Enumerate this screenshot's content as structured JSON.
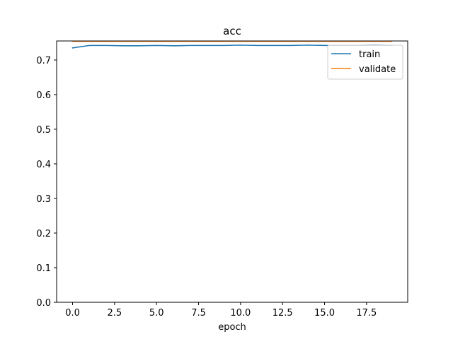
{
  "chart_data": {
    "type": "line",
    "title": "acc",
    "xlabel": "epoch",
    "ylabel": "",
    "xlim": [
      -0.95,
      19.95
    ],
    "ylim": [
      0.0,
      0.755
    ],
    "xticks": [
      0.0,
      2.5,
      5.0,
      7.5,
      10.0,
      12.5,
      15.0,
      17.5
    ],
    "xtick_labels": [
      "0.0",
      "2.5",
      "5.0",
      "7.5",
      "10.0",
      "12.5",
      "15.0",
      "17.5"
    ],
    "yticks": [
      0.0,
      0.1,
      0.2,
      0.3,
      0.4,
      0.5,
      0.6,
      0.7
    ],
    "ytick_labels": [
      "0.0",
      "0.1",
      "0.2",
      "0.3",
      "0.4",
      "0.5",
      "0.6",
      "0.7"
    ],
    "grid": false,
    "legend_position": "top-right",
    "x": [
      0,
      1,
      2,
      3,
      4,
      5,
      6,
      7,
      8,
      9,
      10,
      11,
      12,
      13,
      14,
      15,
      16,
      17,
      18,
      19
    ],
    "series": [
      {
        "name": "train",
        "color": "#1f77b4",
        "values": [
          0.735,
          0.742,
          0.742,
          0.741,
          0.741,
          0.742,
          0.741,
          0.742,
          0.742,
          0.742,
          0.743,
          0.742,
          0.742,
          0.742,
          0.743,
          0.742,
          0.742,
          0.742,
          0.743,
          0.742
        ]
      },
      {
        "name": "validate",
        "color": "#ff7f0e",
        "values": [
          0.754,
          0.754,
          0.754,
          0.754,
          0.754,
          0.754,
          0.754,
          0.754,
          0.754,
          0.754,
          0.754,
          0.754,
          0.754,
          0.754,
          0.754,
          0.754,
          0.754,
          0.754,
          0.754,
          0.754
        ]
      }
    ]
  }
}
